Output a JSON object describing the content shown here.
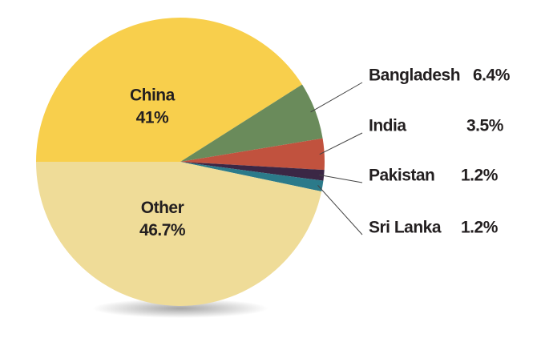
{
  "chart_data": {
    "type": "pie",
    "categories": [
      "China",
      "Bangladesh",
      "India",
      "Pakistan",
      "Sri Lanka",
      "Other"
    ],
    "values": [
      41,
      6.4,
      3.5,
      1.2,
      1.2,
      46.7
    ],
    "value_labels": [
      "41%",
      "6.4%",
      "3.5%",
      "1.2%",
      "1.2%",
      "46.7%"
    ],
    "colors": [
      "#f8cf4c",
      "#6a8b5b",
      "#c1523e",
      "#3b2745",
      "#2b7a8a",
      "#efdc98"
    ]
  }
}
